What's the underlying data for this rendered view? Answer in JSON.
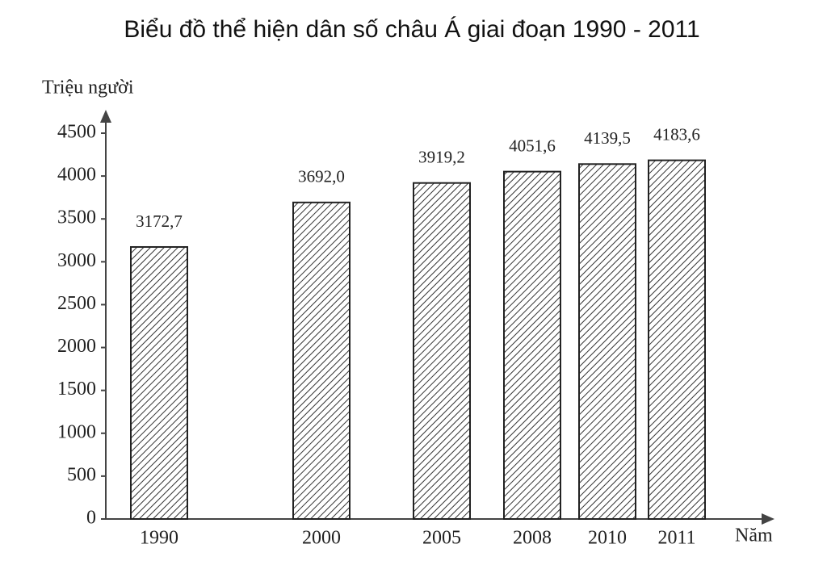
{
  "chart_data": {
    "type": "bar",
    "title": "Biểu đồ thể hiện dân số châu Á giai đoạn 1990 - 2011",
    "y_label": "Triệu người",
    "x_label": "Năm",
    "categories": [
      "1990",
      "2000",
      "2005",
      "2008",
      "2010",
      "2011"
    ],
    "values": [
      3172.7,
      3692.0,
      3919.2,
      4051.6,
      4139.5,
      4183.6
    ],
    "value_labels": [
      "3172,7",
      "3692,0",
      "3919,2",
      "4051,6",
      "4139,5",
      "4183,6"
    ],
    "ylim": [
      0,
      4500
    ],
    "yticks": [
      0,
      500,
      1000,
      1500,
      2000,
      2500,
      3000,
      3500,
      4000,
      4500
    ],
    "grid": false
  }
}
